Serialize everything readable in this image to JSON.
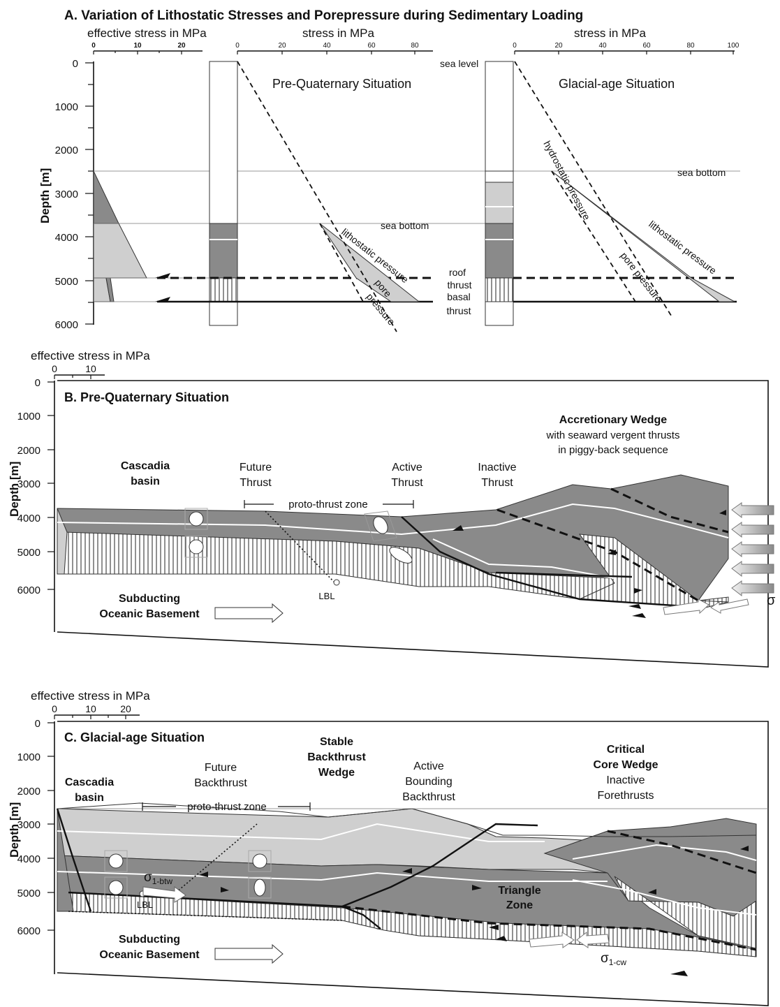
{
  "title": "A. Variation of Lithostatic Stresses and Porepressure during Sedimentary Loading",
  "panelA": {
    "effective_stress_label": "effective stress in MPa",
    "stress_label_1": "stress in MPa",
    "stress_label_2": "stress in MPa",
    "eff_ticks": [
      "0",
      "10",
      "20"
    ],
    "stress_ticks_1": [
      "0",
      "20",
      "40",
      "60",
      "80"
    ],
    "stress_ticks_2": [
      "0",
      "20",
      "40",
      "60",
      "80",
      "100"
    ],
    "depth_label": "Depth [m]",
    "depth_ticks": [
      "0",
      "1000",
      "2000",
      "3000",
      "4000",
      "5000",
      "6000"
    ],
    "pre_title": "Pre-Quaternary  Situation",
    "glacial_title": "Glacial-age  Situation",
    "sea_level": "sea level",
    "sea_bottom_1": "sea bottom",
    "sea_bottom_2": "sea bottom",
    "lithostatic_1": "lithostatic pressure",
    "lithostatic_2": "lithostatic pressure",
    "pore_a": "pore",
    "pore_b": "pressure",
    "pore_pressure": "pore pressure",
    "hydrostatic": "hydrostatic pressure",
    "roof_a": "roof",
    "roof_b": "thrust",
    "basal_a": "basal",
    "basal_b": "thrust"
  },
  "panelB": {
    "effective_stress_label": "effective stress in MPa",
    "eff_ticks": [
      "0",
      "10"
    ],
    "depth_label": "Depth [m]",
    "depth_ticks": [
      "0",
      "1000",
      "2000",
      "3000",
      "4000",
      "5000",
      "6000"
    ],
    "title": "B.  Pre-Quaternary  Situation",
    "cascadia_a": "Cascadia",
    "cascadia_b": "basin",
    "future_a": "Future",
    "future_b": "Thrust",
    "active_a": "Active",
    "active_b": "Thrust",
    "inactive_a": "Inactive",
    "inactive_b": "Thrust",
    "accretionary": "Accretionary Wedge",
    "seaward": "with seaward vergent thrusts",
    "piggy": "in piggy-back sequence",
    "proto": "proto-thrust zone",
    "lbl": "LBL",
    "subducting_a": "Subducting",
    "subducting_b": "Oceanic Basement",
    "sigma": "σ"
  },
  "panelC": {
    "effective_stress_label": "effective stress in MPa",
    "eff_ticks": [
      "0",
      "10",
      "20"
    ],
    "depth_label": "Depth [m]",
    "depth_ticks": [
      "0",
      "1000",
      "2000",
      "3000",
      "4000",
      "5000",
      "6000"
    ],
    "title": "C.  Glacial-age  Situation",
    "cascadia_a": "Cascadia",
    "cascadia_b": "basin",
    "future_a": "Future",
    "future_b": "Backthrust",
    "stable_a": "Stable",
    "stable_b": "Backthrust",
    "stable_c": "Wedge",
    "active_a": "Active",
    "active_b": "Bounding",
    "active_c": "Backthrust",
    "critical_a": "Critical",
    "critical_b": "Core Wedge",
    "inactive_a": "Inactive",
    "inactive_b": "Forethrusts",
    "proto": "proto-thrust zone",
    "triangle_a": "Triangle",
    "triangle_b": "Zone",
    "lbl": "LBL",
    "sigma_btw": "σ",
    "sigma_btw_sub": "1-btw",
    "sigma_cw": "σ",
    "sigma_cw_sub": "1-cw",
    "subducting_a": "Subducting",
    "subducting_b": "Oceanic Basement"
  }
}
